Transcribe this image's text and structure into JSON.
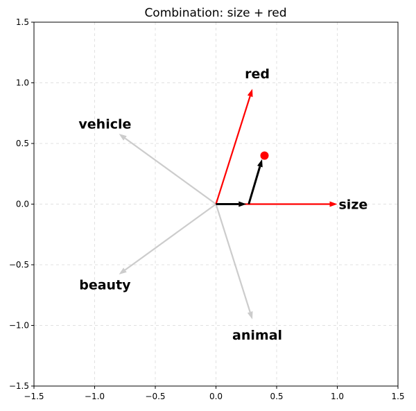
{
  "chart_data": {
    "type": "quiver",
    "title": "Combination: size + red",
    "xlim": [
      -1.5,
      1.5
    ],
    "ylim": [
      -1.5,
      1.5
    ],
    "xticks": [
      -1.5,
      -1.0,
      -0.5,
      0.0,
      0.5,
      1.0,
      1.5
    ],
    "yticks": [
      -1.5,
      -1.0,
      -0.5,
      0.0,
      0.5,
      1.0,
      1.5
    ],
    "xtick_labels": [
      "−1.5",
      "−1.0",
      "−0.5",
      "0.0",
      "0.5",
      "1.0",
      "1.5"
    ],
    "ytick_labels": [
      "−1.5",
      "−1.0",
      "−0.5",
      "0.0",
      "0.5",
      "1.0",
      "1.5"
    ],
    "grid": true,
    "vectors": [
      {
        "label": "red",
        "x": 0.3,
        "y": 0.95,
        "color": "#ff0000"
      },
      {
        "label": "size",
        "x": 1.0,
        "y": 0.0,
        "color": "#ff0000"
      },
      {
        "label": "vehicle",
        "x": -0.8,
        "y": 0.58,
        "color": "#cccccc"
      },
      {
        "label": "beauty",
        "x": -0.8,
        "y": -0.58,
        "color": "#cccccc"
      },
      {
        "label": "animal",
        "x": 0.3,
        "y": -0.95,
        "color": "#cccccc"
      }
    ],
    "combination_steps": [
      {
        "x0": 0.0,
        "y0": 0.0,
        "x1": 0.25,
        "y1": 0.0,
        "color": "#000000"
      },
      {
        "x0": 0.27,
        "y0": 0.0,
        "x1": 0.38,
        "y1": 0.37,
        "color": "#000000"
      }
    ],
    "result_point": {
      "x": 0.4,
      "y": 0.4,
      "color": "#ff0000"
    }
  }
}
